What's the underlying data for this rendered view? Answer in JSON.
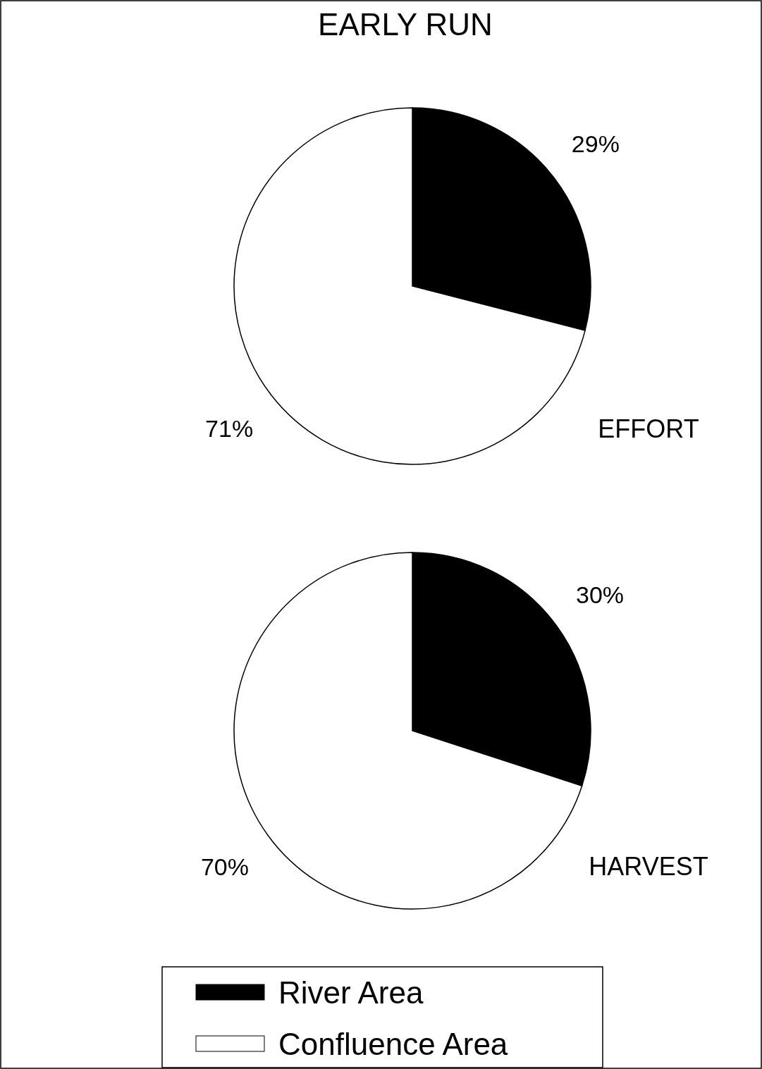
{
  "chart_data": [
    {
      "type": "pie",
      "title": "EARLY RUN",
      "subtitle": "EFFORT",
      "categories": [
        "River Area",
        "Confluence Area"
      ],
      "values": [
        29,
        71
      ],
      "value_labels": [
        "29%",
        "71%"
      ],
      "colors": [
        "#000000",
        "#ffffff"
      ],
      "legend": "bottom"
    },
    {
      "type": "pie",
      "subtitle": "HARVEST",
      "categories": [
        null,
        null
      ],
      "values": [
        30,
        70
      ],
      "value_labels": [
        "30%",
        "70%"
      ],
      "colors": [
        "#000000",
        "#ffffff"
      ],
      "legend": false
    }
  ]
}
